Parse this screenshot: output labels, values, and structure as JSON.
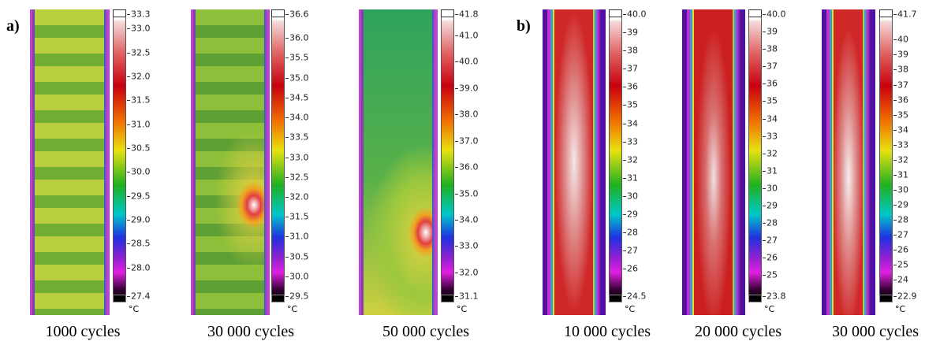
{
  "panels": [
    {
      "label": "a)",
      "images": [
        {
          "caption": "1000 cycles",
          "unit": "°C",
          "scale": [
            "33.3",
            "33.0",
            "32.5",
            "32.0",
            "31.5",
            "31.0",
            "30.5",
            "30.0",
            "29.5",
            "29.0",
            "28.5",
            "28.0",
            "27.4"
          ]
        },
        {
          "caption": "30 000 cycles",
          "unit": "°C",
          "scale": [
            "36.6",
            "36.0",
            "35.5",
            "35.0",
            "34.5",
            "34.0",
            "33.5",
            "33.0",
            "32.5",
            "32.0",
            "31.5",
            "31.0",
            "30.5",
            "30.0",
            "29.5"
          ]
        },
        {
          "caption": "50 000 cycles",
          "unit": "°C",
          "scale": [
            "41.8",
            "41.0",
            "40.0",
            "39.0",
            "38.0",
            "37.0",
            "36.0",
            "35.0",
            "34.0",
            "33.0",
            "32.0",
            "31.1"
          ]
        }
      ]
    },
    {
      "label": "b)",
      "images": [
        {
          "caption": "10 000 cycles",
          "unit": "°C",
          "scale": [
            "40.0",
            "39",
            "38",
            "37",
            "36",
            "35",
            "34",
            "33",
            "32",
            "31",
            "30",
            "29",
            "28",
            "27",
            "26",
            "24.5"
          ]
        },
        {
          "caption": "20 000 cycles",
          "unit": "°C",
          "scale": [
            "40.0",
            "39",
            "38",
            "37",
            "36",
            "35",
            "34",
            "33",
            "32",
            "31",
            "30",
            "29",
            "28",
            "27",
            "26",
            "25",
            "23.8"
          ]
        },
        {
          "caption": "30 000 cycles",
          "unit": "°C",
          "scale": [
            "41.7",
            "40",
            "39",
            "38",
            "37",
            "36",
            "35",
            "34",
            "33",
            "32",
            "31",
            "30",
            "29",
            "28",
            "27",
            "26",
            "25",
            "24",
            "22.9"
          ]
        }
      ]
    }
  ]
}
